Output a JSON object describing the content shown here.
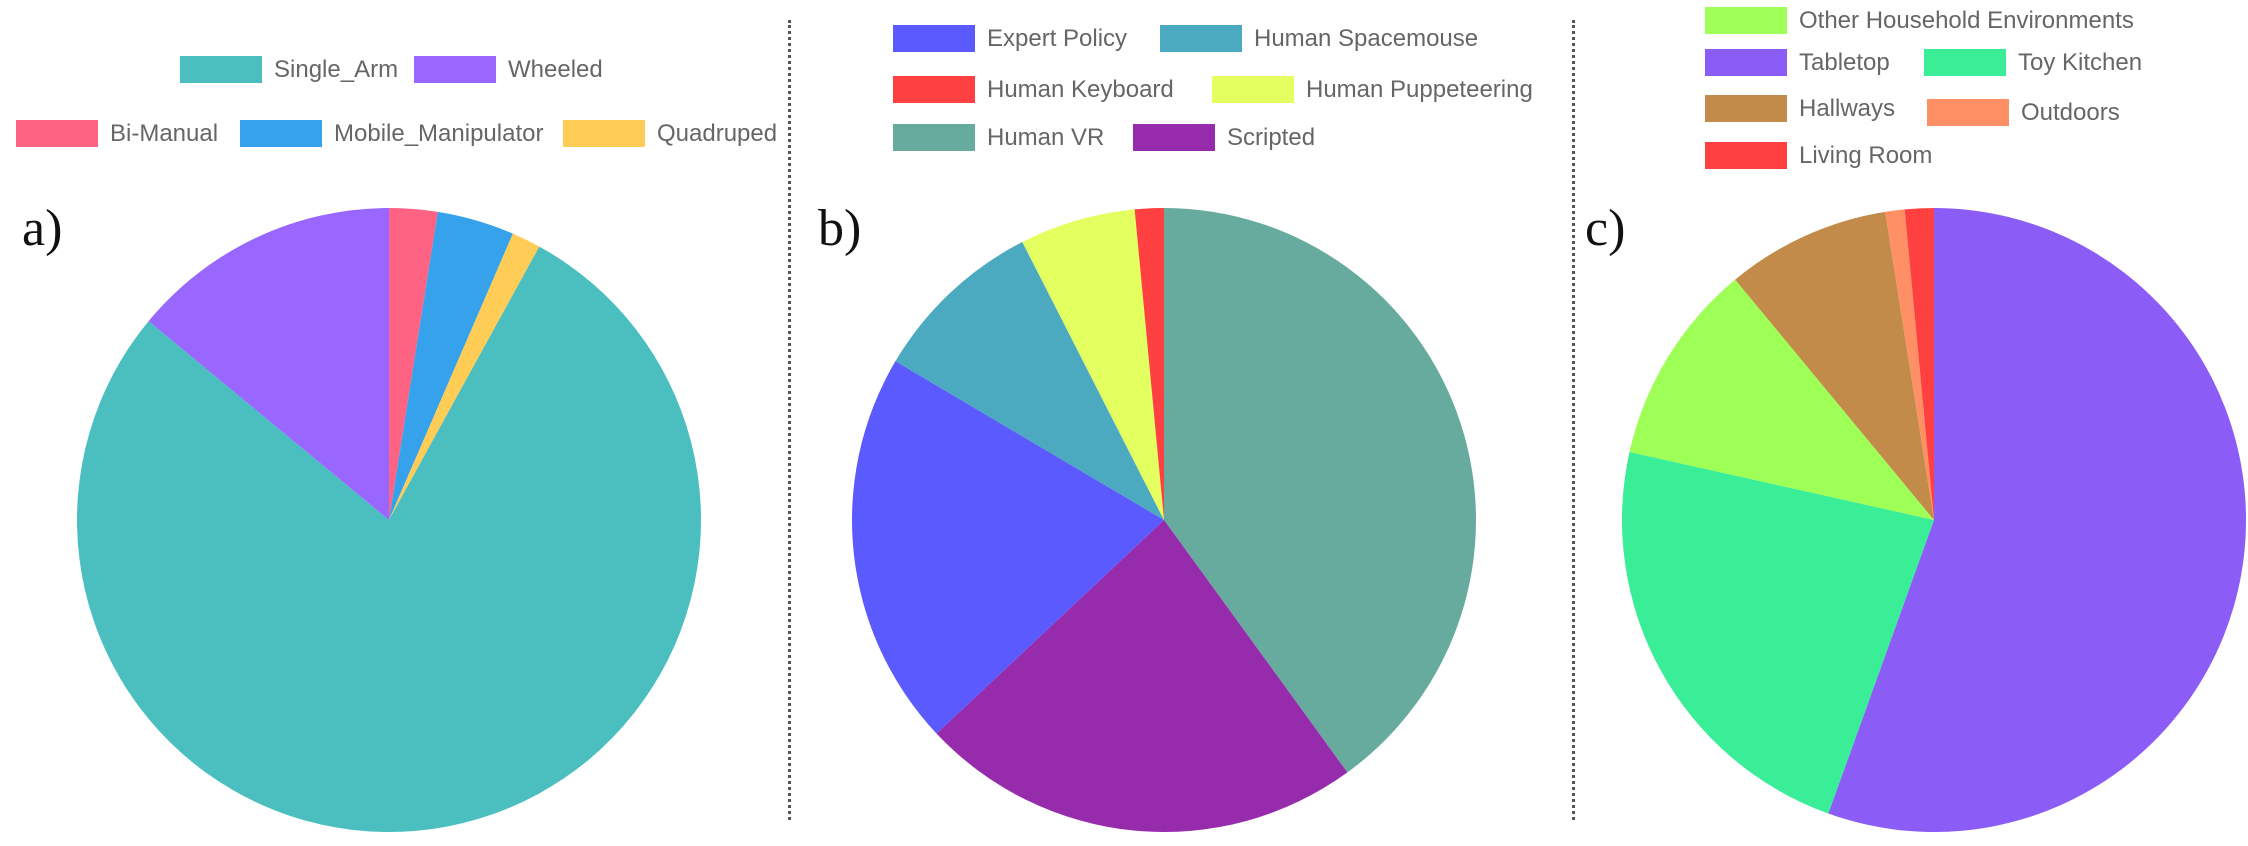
{
  "charts": {
    "a": {
      "letter": "a)",
      "legend": [
        {
          "label": "Single_Arm",
          "color": "#4BBFBF"
        },
        {
          "label": "Wheeled",
          "color": "#9966FF"
        },
        {
          "label": "Bi-Manual",
          "color": "#FF6384"
        },
        {
          "label": "Mobile_Manipulator",
          "color": "#36A2EB"
        },
        {
          "label": "Quadruped",
          "color": "#FFCD56"
        }
      ]
    },
    "b": {
      "letter": "b)",
      "legend": [
        {
          "label": "Expert Policy",
          "color": "#5A5AFF"
        },
        {
          "label": "Human Spacemouse",
          "color": "#4BAABF"
        },
        {
          "label": "Human Keyboard",
          "color": "#FF4040"
        },
        {
          "label": "Human Puppeteering",
          "color": "#E4FF60"
        },
        {
          "label": "Human VR",
          "color": "#67AB9F"
        },
        {
          "label": "Scripted",
          "color": "#962BAC"
        }
      ]
    },
    "c": {
      "letter": "c)",
      "legend": [
        {
          "label": "Other Household Environments",
          "color": "#9EFF56"
        },
        {
          "label": "Tabletop",
          "color": "#8B5CF6"
        },
        {
          "label": "Toy Kitchen",
          "color": "#3AED97"
        },
        {
          "label": "Hallways",
          "color": "#C38B4A"
        },
        {
          "label": "Outdoors",
          "color": "#FF9066"
        },
        {
          "label": "Living Room",
          "color": "#FF4040"
        }
      ]
    }
  },
  "chart_data": [
    {
      "type": "pie",
      "categories": [
        "Bi-Manual",
        "Mobile_Manipulator",
        "Quadruped",
        "Single_Arm",
        "Wheeled"
      ],
      "values": [
        2.5,
        4.0,
        1.5,
        78.0,
        14.0
      ],
      "colors": [
        "#FF6384",
        "#36A2EB",
        "#FFCD56",
        "#4BBFBF",
        "#9966FF"
      ],
      "unit": "percent",
      "legend_position": "top"
    },
    {
      "type": "pie",
      "categories": [
        "Human VR",
        "Scripted",
        "Expert Policy",
        "Human Spacemouse",
        "Human Puppeteering",
        "Human Keyboard"
      ],
      "values": [
        40.0,
        23.0,
        20.5,
        9.0,
        6.0,
        1.5
      ],
      "colors": [
        "#67AB9F",
        "#962BAC",
        "#5A5AFF",
        "#4BAABF",
        "#E4FF60",
        "#FF4040"
      ],
      "unit": "percent",
      "legend_position": "top"
    },
    {
      "type": "pie",
      "categories": [
        "Tabletop",
        "Toy Kitchen",
        "Other Household Environments",
        "Hallways",
        "Outdoors",
        "Living Room"
      ],
      "values": [
        55.5,
        23.0,
        10.5,
        8.5,
        1.0,
        1.5
      ],
      "colors": [
        "#8B5CF6",
        "#3AED97",
        "#9EFF56",
        "#C38B4A",
        "#FF9066",
        "#FF4040"
      ],
      "unit": "percent",
      "legend_position": "top"
    }
  ]
}
